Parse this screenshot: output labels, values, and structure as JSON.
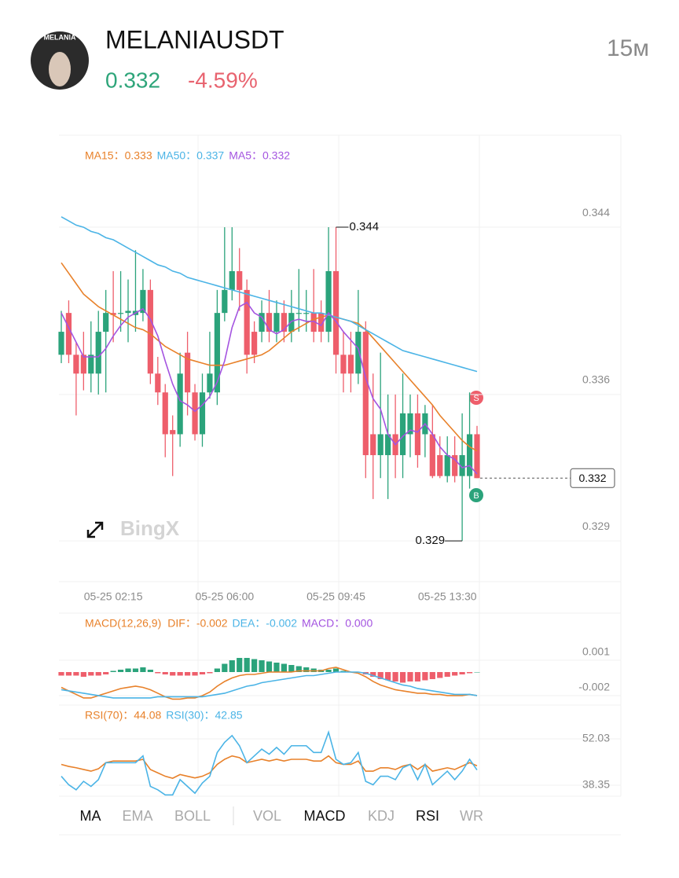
{
  "header": {
    "avatar_text": "MELANIA",
    "symbol": "MELANIAUSDT",
    "price": 0.332,
    "change": "-4.59%",
    "interval": "15м"
  },
  "watermark": "BingX",
  "chart_data": [
    {
      "type": "candlestick",
      "categories": [
        null,
        null,
        null,
        null,
        null,
        null,
        null,
        "05-25 02:15",
        null,
        null,
        null,
        null,
        null,
        null,
        null,
        null,
        null,
        null,
        null,
        null,
        null,
        null,
        "05-25 06:00",
        null,
        null,
        null,
        null,
        null,
        null,
        null,
        null,
        null,
        null,
        null,
        null,
        null,
        null,
        "05-25 09:45",
        null,
        null,
        null,
        null,
        null,
        null,
        null,
        null,
        null,
        null,
        null,
        null,
        null,
        null,
        "05-25 13:30",
        null,
        null,
        null,
        null
      ],
      "open": [
        0.3379,
        0.3399,
        0.3379,
        0.3379,
        0.337,
        0.337,
        0.339,
        0.3399,
        0.3399,
        0.3399,
        0.3398,
        0.3399,
        0.341,
        0.337,
        0.3361,
        0.3343,
        0.3341,
        0.338,
        0.3361,
        0.3341,
        0.3361,
        0.3361,
        0.3399,
        0.341,
        0.3419,
        0.341,
        0.339,
        0.339,
        0.3399,
        0.339,
        0.3399,
        0.339,
        0.3399,
        0.3399,
        0.3399,
        0.3399,
        0.339,
        0.3419,
        0.3379,
        0.3379,
        0.337,
        0.339,
        0.3341,
        0.3331,
        0.3331,
        0.3341,
        0.3331,
        0.3341,
        0.3351,
        0.3341,
        0.3341,
        0.3331,
        0.3321,
        0.3331,
        0.3321,
        0.3321,
        0.3341
      ],
      "high": [
        0.34,
        0.3405,
        0.3385,
        0.339,
        0.3395,
        0.34,
        0.341,
        0.3419,
        0.3419,
        0.3415,
        0.3429,
        0.342,
        0.3415,
        0.3378,
        0.3365,
        0.335,
        0.338,
        0.339,
        0.3365,
        0.337,
        0.339,
        0.341,
        0.344,
        0.344,
        0.343,
        0.3415,
        0.3395,
        0.3405,
        0.341,
        0.3405,
        0.3405,
        0.341,
        0.342,
        0.341,
        0.342,
        0.3405,
        0.344,
        0.344,
        0.339,
        0.339,
        0.341,
        0.3395,
        0.337,
        0.338,
        0.336,
        0.336,
        0.337,
        0.336,
        0.336,
        0.3355,
        0.3355,
        0.334,
        0.334,
        0.334,
        0.3351,
        0.3361,
        0.3345
      ],
      "low": [
        0.3375,
        0.3375,
        0.335,
        0.3362,
        0.3361,
        0.336,
        0.3361,
        0.3385,
        0.339,
        0.3385,
        0.339,
        0.3395,
        0.3365,
        0.3355,
        0.333,
        0.3321,
        0.3335,
        0.335,
        0.3338,
        0.3335,
        0.3358,
        0.3355,
        0.3395,
        0.3405,
        0.34,
        0.337,
        0.3375,
        0.3385,
        0.3385,
        0.3385,
        0.3385,
        0.3385,
        0.339,
        0.339,
        0.3385,
        0.3385,
        0.3385,
        0.337,
        0.3361,
        0.3361,
        0.3365,
        0.332,
        0.331,
        0.332,
        0.331,
        0.332,
        0.332,
        0.333,
        0.3325,
        0.333,
        0.332,
        0.332,
        0.3318,
        0.3318,
        0.329,
        0.3315,
        0.332
      ],
      "close": [
        0.339,
        0.3379,
        0.337,
        0.337,
        0.3379,
        0.339,
        0.3399,
        0.3398,
        0.3399,
        0.34,
        0.34,
        0.341,
        0.337,
        0.3361,
        0.3341,
        0.3341,
        0.337,
        0.3361,
        0.3341,
        0.3361,
        0.337,
        0.3399,
        0.341,
        0.3419,
        0.341,
        0.3379,
        0.3379,
        0.3399,
        0.339,
        0.3399,
        0.339,
        0.3399,
        0.3399,
        0.3399,
        0.339,
        0.339,
        0.3419,
        0.3379,
        0.337,
        0.337,
        0.339,
        0.3331,
        0.3331,
        0.3341,
        0.3341,
        0.3331,
        0.3351,
        0.3351,
        0.3331,
        0.3351,
        0.3321,
        0.3321,
        0.3331,
        0.3321,
        0.3331,
        0.3341,
        0.332
      ],
      "up_color": "#2ba37b",
      "down_color": "#ee5e6b",
      "series": [
        {
          "name": "MA15：0.333",
          "color": "#e8812a",
          "values": [
            0.3423,
            0.3418,
            0.3413,
            0.3408,
            0.3405,
            0.3402,
            0.34,
            0.3398,
            0.3396,
            0.3394,
            0.3392,
            0.3391,
            0.3389,
            0.3386,
            0.3383,
            0.3381,
            0.3379,
            0.3377,
            0.3376,
            0.3375,
            0.3374,
            0.3374,
            0.3374,
            0.3375,
            0.3376,
            0.3377,
            0.3378,
            0.3379,
            0.3381,
            0.3384,
            0.3387,
            0.339,
            0.3392,
            0.3394,
            0.3396,
            0.3397,
            0.3398,
            0.3397,
            0.3396,
            0.3395,
            0.3394,
            0.3391,
            0.3387,
            0.3383,
            0.3379,
            0.3375,
            0.3371,
            0.3367,
            0.3363,
            0.3359,
            0.3355,
            0.335,
            0.3346,
            0.3342,
            0.3338,
            0.3335,
            0.3333
          ]
        },
        {
          "name": "MA50：0.337",
          "color": "#4bb4e6",
          "values": [
            0.3445,
            0.3443,
            0.3441,
            0.344,
            0.3438,
            0.3437,
            0.3435,
            0.3434,
            0.3432,
            0.343,
            0.3428,
            0.3426,
            0.3424,
            0.3422,
            0.3421,
            0.3419,
            0.3418,
            0.3416,
            0.3415,
            0.3414,
            0.3413,
            0.3412,
            0.3411,
            0.341,
            0.3409,
            0.3408,
            0.3407,
            0.3406,
            0.3405,
            0.3404,
            0.3403,
            0.3402,
            0.3401,
            0.34,
            0.3399,
            0.3399,
            0.3398,
            0.3397,
            0.3396,
            0.3395,
            0.3393,
            0.3391,
            0.3389,
            0.3387,
            0.3385,
            0.3383,
            0.3381,
            0.338,
            0.3379,
            0.3378,
            0.3377,
            0.3376,
            0.3375,
            0.3374,
            0.3373,
            0.3372,
            0.3371
          ]
        },
        {
          "name": "MA5：0.332",
          "color": "#a454e0",
          "values": [
            0.3399,
            0.3392,
            0.3385,
            0.3378,
            0.3378,
            0.3378,
            0.3382,
            0.3388,
            0.3393,
            0.3397,
            0.3399,
            0.3401,
            0.3396,
            0.3388,
            0.3376,
            0.3365,
            0.3357,
            0.3355,
            0.3352,
            0.3355,
            0.3359,
            0.3366,
            0.3376,
            0.3392,
            0.3402,
            0.3404,
            0.3399,
            0.3397,
            0.3391,
            0.3389,
            0.3391,
            0.3395,
            0.3396,
            0.3395,
            0.3395,
            0.3393,
            0.3399,
            0.3395,
            0.339,
            0.3386,
            0.3382,
            0.3368,
            0.3358,
            0.3353,
            0.3341,
            0.3336,
            0.334,
            0.3343,
            0.3342,
            0.3346,
            0.3341,
            0.3335,
            0.3331,
            0.3329,
            0.3325,
            0.3326,
            0.3322
          ]
        }
      ],
      "ylim": [
        0.32705,
        0.3484
      ],
      "yticks": [
        0.344,
        0.336,
        0.329
      ],
      "high_label": 0.344,
      "low_label": 0.329,
      "last_price": 0.332,
      "markers": [
        "S",
        "B"
      ]
    },
    {
      "type": "macd",
      "title": "MACD(12,26,9)",
      "title_color": "#e8812a",
      "series": [
        {
          "name": "DIF：-0.002",
          "color": "#e8812a",
          "kind": "line",
          "values": [
            -0.0013,
            -0.0016,
            -0.0019,
            -0.0022,
            -0.0022,
            -0.002,
            -0.0018,
            -0.0016,
            -0.0014,
            -0.0013,
            -0.0012,
            -0.0013,
            -0.0015,
            -0.0018,
            -0.0021,
            -0.0023,
            -0.0023,
            -0.0022,
            -0.0022,
            -0.002,
            -0.0017,
            -0.0012,
            -0.0008,
            -0.0005,
            -0.0003,
            -0.0002,
            -0.0002,
            -0.0001,
            0.0,
            0.0,
            0.0,
            0.0,
            0.0001,
            0.0001,
            0.0001,
            0.0001,
            0.0003,
            0.0004,
            0.0002,
            0.0,
            -0.0001,
            -0.0004,
            -0.0008,
            -0.0011,
            -0.0013,
            -0.0015,
            -0.0016,
            -0.0017,
            -0.0018,
            -0.0018,
            -0.0019,
            -0.0019,
            -0.002,
            -0.002,
            -0.002,
            -0.0019,
            -0.002
          ]
        },
        {
          "name": "DEA：-0.002",
          "color": "#4bb4e6",
          "kind": "line",
          "values": [
            -0.0015,
            -0.0016,
            -0.0017,
            -0.0018,
            -0.0019,
            -0.002,
            -0.0021,
            -0.0022,
            -0.0022,
            -0.0022,
            -0.0022,
            -0.0022,
            -0.0022,
            -0.0021,
            -0.0021,
            -0.0021,
            -0.0021,
            -0.0021,
            -0.0021,
            -0.0021,
            -0.002,
            -0.0019,
            -0.0018,
            -0.0016,
            -0.0014,
            -0.0012,
            -0.0011,
            -0.0009,
            -0.0008,
            -0.0007,
            -0.0006,
            -0.0005,
            -0.0004,
            -0.0003,
            -0.0003,
            -0.0002,
            -0.0001,
            0.0,
            0.0,
            0.0,
            0.0,
            -0.0001,
            -0.0003,
            -0.0005,
            -0.0007,
            -0.0009,
            -0.0011,
            -0.0012,
            -0.0014,
            -0.0015,
            -0.0016,
            -0.0017,
            -0.0018,
            -0.0019,
            -0.0019,
            -0.0019,
            -0.002
          ]
        },
        {
          "name": "MACD：0.000",
          "color": "#a454e0",
          "kind": "bar",
          "up_color": "#2ba37b",
          "down_color": "#ee5e6b",
          "values": [
            -0.0003,
            -0.0003,
            -0.0003,
            -0.0004,
            -0.0003,
            -0.0003,
            -0.0002,
            0.0001,
            0.0002,
            0.0003,
            0.0003,
            0.0004,
            0.0002,
            -0.0001,
            -0.0002,
            -0.0003,
            -0.0003,
            -0.0003,
            -0.0003,
            -0.0002,
            -0.0001,
            0.0003,
            0.0007,
            0.001,
            0.0012,
            0.0012,
            0.0011,
            0.001,
            0.0009,
            0.0008,
            0.0007,
            0.0006,
            0.0005,
            0.0004,
            0.0003,
            0.0002,
            0.0002,
            0.0003,
            0.0001,
            0.0,
            0.0,
            -0.0002,
            -0.0004,
            -0.0006,
            -0.0007,
            -0.0008,
            -0.0009,
            -0.0008,
            -0.0008,
            -0.0007,
            -0.0006,
            -0.0005,
            -0.0004,
            -0.0003,
            -0.0002,
            -0.0001,
            0.0
          ]
        }
      ],
      "ylim": [
        -0.00267,
        0.00367
      ],
      "yticks": [
        0.001,
        -0.002
      ]
    },
    {
      "type": "line",
      "series": [
        {
          "name": "RSI(70)：44.08",
          "color": "#e8812a",
          "values": [
            44.5,
            43.9,
            43.5,
            43.0,
            42.5,
            43.2,
            45.0,
            45.5,
            45.5,
            45.5,
            45.5,
            46.0,
            43.0,
            42.0,
            41.0,
            40.4,
            41.5,
            41.0,
            40.5,
            41.0,
            42.0,
            44.5,
            46.0,
            47.0,
            46.5,
            45.0,
            45.5,
            46.0,
            45.5,
            46.0,
            45.5,
            46.0,
            46.0,
            46.0,
            45.5,
            45.5,
            47.0,
            45.0,
            44.5,
            44.5,
            45.5,
            42.5,
            42.5,
            43.5,
            43.5,
            43.0,
            44.0,
            44.5,
            43.0,
            44.5,
            42.5,
            43.0,
            43.5,
            43.0,
            44.0,
            45.0,
            44.08
          ]
        },
        {
          "name": "RSI(30)：42.85",
          "color": "#4bb4e6",
          "values": [
            41.0,
            38.5,
            37.0,
            39.5,
            38.0,
            40.0,
            45.0,
            45.0,
            45.0,
            45.0,
            45.0,
            47.0,
            38.0,
            37.0,
            35.5,
            35.5,
            40.0,
            38.0,
            36.0,
            39.0,
            41.0,
            48.0,
            51.0,
            53.0,
            50.0,
            45.0,
            47.0,
            49.0,
            47.5,
            49.5,
            47.5,
            50.0,
            50.0,
            50.0,
            48.0,
            48.0,
            54.0,
            46.0,
            44.5,
            45.0,
            48.0,
            39.5,
            38.5,
            41.0,
            41.0,
            40.0,
            43.5,
            44.5,
            40.0,
            44.5,
            38.5,
            40.5,
            42.5,
            40.0,
            42.5,
            46.0,
            42.85
          ]
        }
      ],
      "ylim": [
        35.1,
        61.3
      ],
      "yticks": [
        52.03,
        38.35
      ]
    }
  ],
  "tabs": [
    {
      "label": "MA",
      "active": true
    },
    {
      "label": "EMA",
      "active": false
    },
    {
      "label": "BOLL",
      "active": false
    },
    {
      "label": "VOL",
      "active": false
    },
    {
      "label": "MACD",
      "active": true
    },
    {
      "label": "KDJ",
      "active": false
    },
    {
      "label": "RSI",
      "active": true
    },
    {
      "label": "WR",
      "active": false
    }
  ]
}
